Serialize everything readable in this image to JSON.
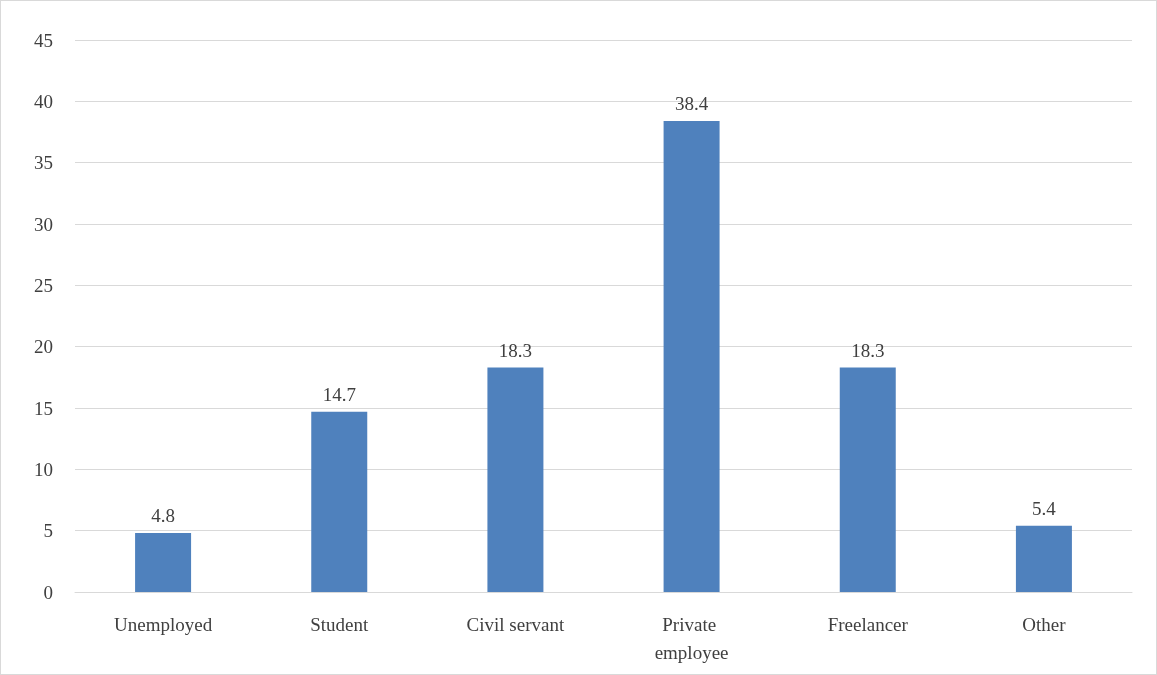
{
  "chart_data": {
    "type": "bar",
    "categories": [
      "Unemployed",
      "Student",
      "Civil servant",
      "Private employee",
      "Freelancer",
      "Other"
    ],
    "values": [
      4.8,
      14.7,
      18.3,
      38.4,
      18.3,
      5.4
    ],
    "color": "#4f81bd",
    "ylim": [
      0,
      45
    ],
    "yticks": [
      0,
      5,
      10,
      15,
      20,
      25,
      30,
      35,
      40,
      45
    ],
    "grid": "y",
    "data_labels": true
  }
}
